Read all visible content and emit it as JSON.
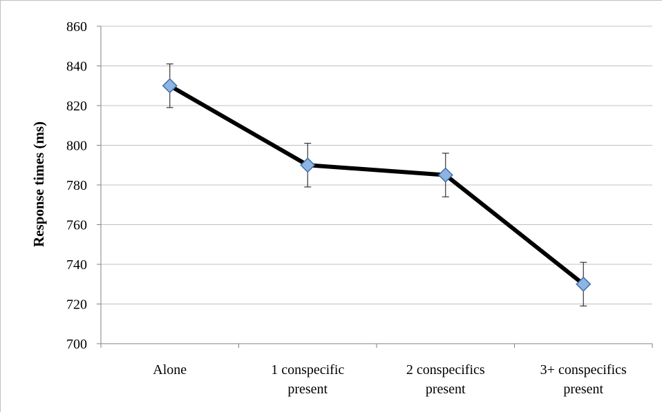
{
  "chart_data": {
    "type": "line",
    "title": "",
    "xlabel": "",
    "ylabel": "Response times (ms)",
    "categories": [
      [
        "Alone"
      ],
      [
        "1 conspecific",
        "present"
      ],
      [
        "2 conspecifics",
        "present"
      ],
      [
        "3+ conspecifics",
        "present"
      ]
    ],
    "series": [
      {
        "values": [
          830,
          790,
          785,
          730
        ],
        "error": [
          11,
          11,
          11,
          11
        ],
        "line_color": "#000000",
        "marker": "diamond",
        "marker_color": "#8db4e2",
        "marker_edge_color": "#3e6aa8"
      }
    ],
    "ylim": [
      700,
      860
    ],
    "yticks": [
      700,
      720,
      740,
      760,
      780,
      800,
      820,
      840,
      860
    ],
    "grid": true,
    "grid_color": "#c0c0c0",
    "legend": "none"
  }
}
